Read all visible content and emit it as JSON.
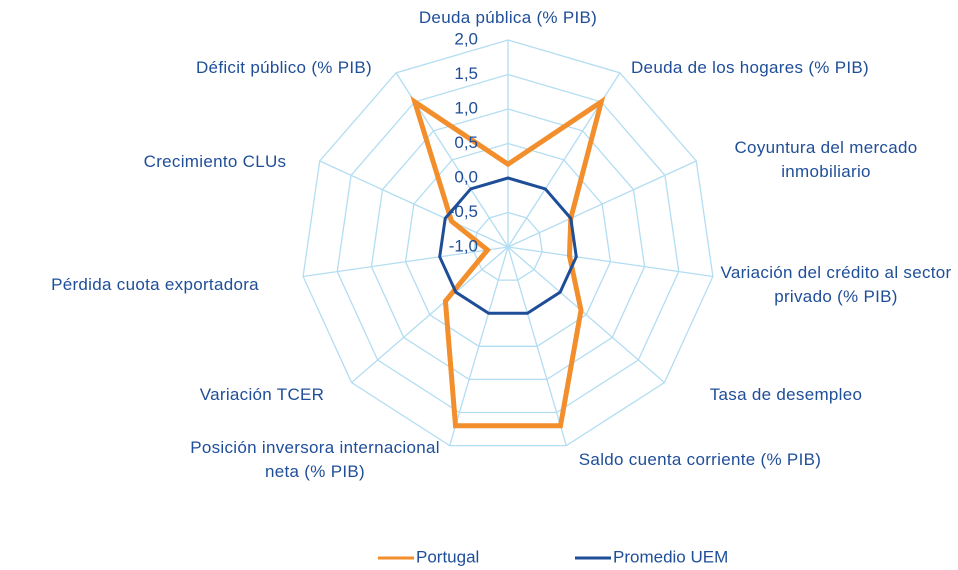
{
  "chart_data": {
    "type": "radar",
    "categories": [
      "Deuda pública (% PIB)",
      "Deuda de los hogares (% PIB)",
      "Coyuntura del mercado inmobiliario",
      "Variación del crédito al sector privado (% PIB)",
      "Tasa de desempleo",
      "Saldo cuenta corriente (% PIB)",
      "Posición inversora internacional neta (% PIB)",
      "Variación TCER",
      "Pérdida cuota exportadora",
      "Crecimiento CLUs",
      "Déficit público (% PIB)"
    ],
    "series": [
      {
        "name": "Portugal",
        "color": "#f28e2b",
        "values": [
          0.2,
          1.5,
          0.0,
          -0.1,
          0.4,
          1.7,
          1.7,
          0.2,
          -0.7,
          -0.1,
          1.5
        ]
      },
      {
        "name": "Promedio UEM",
        "color": "#1f4e99",
        "values": [
          0,
          0,
          0,
          0,
          0,
          0,
          0,
          0,
          0,
          0,
          0
        ]
      }
    ],
    "ylim": [
      -1,
      2
    ],
    "yticks": [
      {
        "value": -1,
        "label": "-1,0"
      },
      {
        "value": -0.5,
        "label": "-0,5"
      },
      {
        "value": 0,
        "label": "0,0"
      },
      {
        "value": 0.5,
        "label": "0,5"
      },
      {
        "value": 1,
        "label": "1,0"
      },
      {
        "value": 1.5,
        "label": "1,5"
      },
      {
        "value": 2,
        "label": "2,0"
      }
    ],
    "grid": true,
    "legend": "bottom"
  }
}
